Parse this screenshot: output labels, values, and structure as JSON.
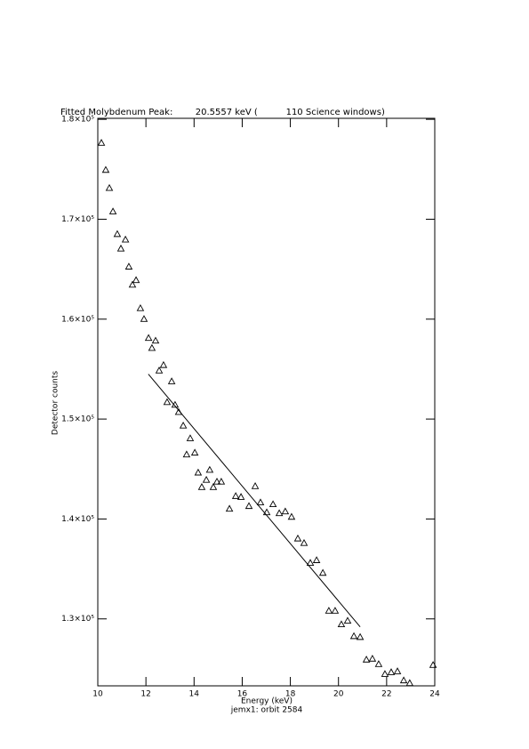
{
  "chart_data": {
    "type": "scatter",
    "title": "Fitted Molybdenum Peak:        20.5557 keV (          110 Science windows)",
    "x_label": "Energy (keV)",
    "subtitle": "jemx1: orbit 2584",
    "y_label": "Detector counts",
    "xlim": [
      10,
      24
    ],
    "ylim": [
      123300,
      180100
    ],
    "xticks": [
      10,
      12,
      14,
      16,
      18,
      20,
      22,
      24
    ],
    "yticks": [
      {
        "value": 130000,
        "label": "1.3×10⁵"
      },
      {
        "value": 140000,
        "label": "1.4×10⁵"
      },
      {
        "value": 150000,
        "label": "1.5×10⁵"
      },
      {
        "value": 160000,
        "label": "1.6×10⁵"
      },
      {
        "value": 170000,
        "label": "1.7×10⁵"
      },
      {
        "value": 180000,
        "label": "1.8×10⁵"
      }
    ],
    "series": [
      {
        "type": "scatter",
        "color": "#000000",
        "x": [
          10.15,
          10.33,
          10.48,
          10.63,
          10.81,
          10.96,
          11.15,
          11.29,
          11.44,
          11.59,
          11.77,
          11.92,
          12.11,
          12.25,
          12.4,
          12.55,
          12.73,
          12.88,
          13.07,
          13.21,
          13.36,
          13.55,
          13.69,
          13.84,
          14.03,
          14.17,
          14.32,
          14.51,
          14.65,
          14.8,
          14.95,
          15.13,
          15.47,
          15.73,
          15.95,
          16.28,
          16.54,
          16.76,
          17.02,
          17.28,
          17.54,
          17.79,
          18.05,
          18.31,
          18.57,
          18.83,
          19.09,
          19.35,
          19.6,
          19.86,
          20.12,
          20.38,
          20.64,
          20.9,
          21.16,
          21.41,
          21.67,
          21.93,
          22.19,
          22.45,
          22.71,
          22.96,
          23.93
        ],
        "values": [
          177650,
          174940,
          173130,
          170780,
          168520,
          167070,
          167970,
          165260,
          163450,
          163910,
          161100,
          160020,
          158120,
          157120,
          157850,
          154860,
          155410,
          151700,
          153780,
          151430,
          150710,
          149350,
          146460,
          148080,
          146640,
          144650,
          143200,
          143920,
          144920,
          143200,
          143740,
          143740,
          141030,
          142300,
          142210,
          141300,
          143290,
          141660,
          140670,
          141480,
          140580,
          140760,
          140220,
          138050,
          137600,
          135610,
          135880,
          134610,
          130820,
          130820,
          129460,
          129820,
          128280,
          128190,
          125930,
          126020,
          125480,
          124490,
          124670,
          124760,
          123850,
          123580,
          125390
        ]
      },
      {
        "type": "line",
        "color": "#000000",
        "x": [
          12.1,
          20.9
        ],
        "values": [
          154500,
          129200
        ]
      }
    ]
  }
}
